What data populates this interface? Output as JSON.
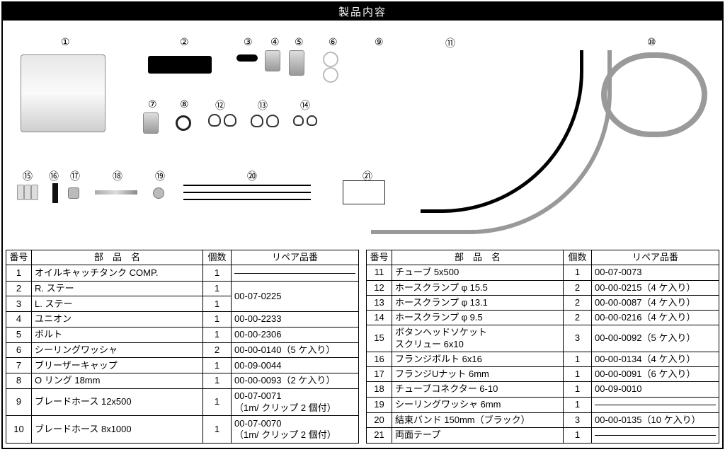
{
  "title": "製品内容",
  "headers": {
    "num": "番号",
    "name": "部　品　名",
    "qty": "個数",
    "repair": "リペア品番"
  },
  "labels": {
    "1": "①",
    "2": "②",
    "3": "③",
    "4": "④",
    "5": "⑤",
    "6": "⑥",
    "7": "⑦",
    "8": "⑧",
    "9": "⑨",
    "10": "⑩",
    "11": "⑪",
    "12": "⑫",
    "13": "⑬",
    "14": "⑭",
    "15": "⑮",
    "16": "⑯",
    "17": "⑰",
    "18": "⑱",
    "19": "⑲",
    "20": "⑳",
    "21": "㉑"
  },
  "left_rows": [
    {
      "n": "1",
      "name": "オイルキャッチタンク COMP.",
      "q": "1",
      "r": "—"
    },
    {
      "n": "2",
      "name": "R. ステー",
      "q": "1",
      "r": "00-07-0225",
      "rowspan_r": 2
    },
    {
      "n": "3",
      "name": "L. ステー",
      "q": "1"
    },
    {
      "n": "4",
      "name": "ユニオン",
      "q": "1",
      "r": "00-00-2233"
    },
    {
      "n": "5",
      "name": "ボルト",
      "q": "1",
      "r": "00-00-2306"
    },
    {
      "n": "6",
      "name": "シーリングワッシャ",
      "q": "2",
      "r": "00-00-0140（5 ケ入り）"
    },
    {
      "n": "7",
      "name": "ブリーザーキャップ",
      "q": "1",
      "r": "00-09-0044"
    },
    {
      "n": "8",
      "name": "O リング 18mm",
      "q": "1",
      "r": "00-00-0093（2 ケ入り）"
    },
    {
      "n": "9",
      "name": "ブレードホース 12x500",
      "q": "1",
      "r": "00-07-0071\n（1m/ クリップ 2 個付）"
    },
    {
      "n": "10",
      "name": "ブレードホース 8x1000",
      "q": "1",
      "r": "00-07-0070\n（1m/ クリップ 2 個付）"
    }
  ],
  "right_rows": [
    {
      "n": "11",
      "name": "チューブ 5x500",
      "q": "1",
      "r": "00-07-0073"
    },
    {
      "n": "12",
      "name": "ホースクランプ φ 15.5",
      "q": "2",
      "r": "00-00-0215（4 ケ入り）"
    },
    {
      "n": "13",
      "name": "ホースクランプ φ 13.1",
      "q": "2",
      "r": "00-00-0087（4 ケ入り）"
    },
    {
      "n": "14",
      "name": "ホースクランプ φ 9.5",
      "q": "2",
      "r": "00-00-0216（4 ケ入り）"
    },
    {
      "n": "15",
      "name": "ボタンヘッドソケット\nスクリュー 6x10",
      "q": "3",
      "r": "00-00-0092（5 ケ入り）"
    },
    {
      "n": "16",
      "name": "フランジボルト 6x16",
      "q": "1",
      "r": "00-00-0134（4 ケ入り）"
    },
    {
      "n": "17",
      "name": "フランジUナット 6mm",
      "q": "1",
      "r": "00-00-0091（6 ケ入り）"
    },
    {
      "n": "18",
      "name": "チューブコネクター 6-10",
      "q": "1",
      "r": "00-09-0010"
    },
    {
      "n": "19",
      "name": "シーリングワッシャ 6mm",
      "q": "1",
      "r": "—"
    },
    {
      "n": "20",
      "name": "結束バンド 150mm（ブラック）",
      "q": "3",
      "r": "00-00-0135（10 ケ入り）"
    },
    {
      "n": "21",
      "name": "両面テープ",
      "q": "1",
      "r": "—"
    }
  ]
}
